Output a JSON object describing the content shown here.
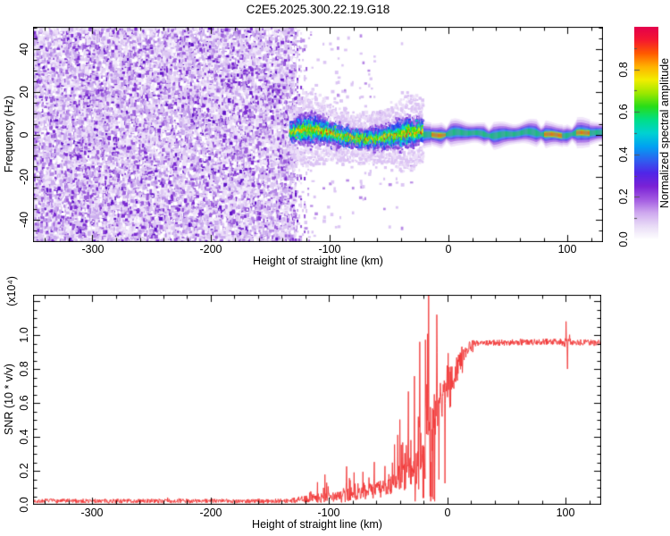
{
  "title": "C2E5.2025.300.22.19.G18",
  "labels": {
    "xlabel": "Height of straight line (km)",
    "top_ylabel": "Frequency (Hz)",
    "bottom_ylabel": "SNR (10 * v/v)",
    "bottom_ylabel_scale": "(x10⁴)",
    "colorbar_label": "Normalized spectral amplitude",
    "top_yticks": [
      "40",
      "20",
      "0",
      "-20",
      "-40"
    ],
    "xticks": [
      "-300",
      "-200",
      "-100",
      "0",
      "100"
    ],
    "bottom_yticks": [
      "1.0",
      "0.8",
      "0.6",
      "0.4",
      "0.2",
      "0.0"
    ],
    "cb_ticks": [
      "0.8",
      "0.6",
      "0.4",
      "0.2",
      "0.0"
    ]
  },
  "chart_data": [
    {
      "type": "heatmap",
      "subtype": "spectrogram",
      "title": "C2E5.2025.300.22.19.G18",
      "xlabel": "Height of straight line (km)",
      "ylabel": "Frequency (Hz)",
      "xlim": [
        -350,
        130
      ],
      "ylim": [
        -50.5,
        50.5
      ],
      "xticks": [
        -300,
        -200,
        -100,
        0,
        100
      ],
      "x_minor_step": 20,
      "x_major_step": 100,
      "yticks": [
        40,
        20,
        0,
        -20,
        -40
      ],
      "y_minor_step": 5,
      "y_major_step": 20,
      "grid": false,
      "colorbar": {
        "label": "Normalized spectral amplitude",
        "ticks": [
          0.0,
          0.2,
          0.4,
          0.6,
          0.8
        ],
        "minor_step": 0.1,
        "range": [
          0,
          1
        ],
        "stops": [
          "#ffffff",
          "#e9dcf7",
          "#cfa9ef",
          "#a35ae2",
          "#7a22d6",
          "#5026e8",
          "#2d62f0",
          "#00a2f2",
          "#00d2d2",
          "#00df88",
          "#28dd18",
          "#9ce800",
          "#f2ee00",
          "#ffb200",
          "#ff5a00",
          "#f51830",
          "#e4004e"
        ]
      },
      "regions": {
        "noise_field": {
          "x_range": [
            -350,
            -129.5
          ],
          "f_range": [
            -50.5,
            50.5
          ],
          "description": "dense purple speckle noise filling full frequency range"
        },
        "band_speckle": {
          "x_range": [
            -133,
            -21
          ],
          "center_hz": 0,
          "halfwidth_hz": [
            4,
            10
          ],
          "description": "wavy multicolor (blue-cyan-green-yellow-red) speckled signal band around 0 Hz"
        },
        "smooth_line": {
          "x_range": [
            -21,
            130
          ],
          "center_hz": 0.3,
          "halo_halfwidth_hz": 5.2,
          "core_halfwidth_hz": 1.35,
          "description": "narrow smooth signal line, green core with cyan-blue-purple halo"
        },
        "red_segments_km": [
          [
            -14,
            -2
          ],
          [
            81,
            96
          ],
          [
            108,
            119
          ]
        ],
        "pinch_km": [
          -2,
          34,
          78,
          104
        ]
      }
    },
    {
      "type": "line",
      "xlabel": "Height of straight line (km)",
      "ylabel": "SNR (10 * v/v)",
      "ylabel_scale_note": "(x10⁴)",
      "xlim": [
        -350,
        130
      ],
      "ylim": [
        0,
        1.237
      ],
      "xticks": [
        -300,
        -200,
        -100,
        0,
        100
      ],
      "x_minor_step": 20,
      "x_major_step": 100,
      "yticks": [
        1.0,
        0.8,
        0.6,
        0.4,
        0.2,
        0.0
      ],
      "y_minor_step": 0.05,
      "y_major_step": 0.2,
      "grid": false,
      "series": [
        {
          "name": "SNR",
          "color": "#f23838",
          "envelope": [
            {
              "km": [
                -350,
                -132
              ],
              "base": [
                0.022,
                0.022
              ],
              "noise": 0.013,
              "spike_rate": 0.02,
              "spike_max": 0.05
            },
            {
              "km": [
                -132,
                -116
              ],
              "base": [
                0.025,
                0.035
              ],
              "noise": 0.02,
              "spike_rate": 0.06,
              "spike_max": 0.09
            },
            {
              "km": [
                -116,
                -111
              ],
              "base": [
                0.05,
                0.05
              ],
              "noise": 0.03,
              "spike_rate": 0.2,
              "spike_max": 0.12
            },
            {
              "km": [
                -111,
                -90
              ],
              "base": [
                0.04,
                0.05
              ],
              "noise": 0.03,
              "spike_rate": 0.12,
              "spike_max": 0.22
            },
            {
              "km": [
                -90,
                -70
              ],
              "base": [
                0.05,
                0.07
              ],
              "noise": 0.04,
              "spike_rate": 0.15,
              "spike_max": 0.32
            },
            {
              "km": [
                -70,
                -52
              ],
              "base": [
                0.07,
                0.1
              ],
              "noise": 0.05,
              "spike_rate": 0.18,
              "spike_max": 0.46
            },
            {
              "km": [
                -52,
                -38
              ],
              "base": [
                0.1,
                0.15
              ],
              "noise": 0.06,
              "spike_rate": 0.2,
              "spike_max": 0.62
            },
            {
              "km": [
                -38,
                -28
              ],
              "base": [
                0.15,
                0.22
              ],
              "noise": 0.09,
              "spike_rate": 0.22,
              "spike_max": 0.88
            },
            {
              "km": [
                -28,
                -19
              ],
              "base": [
                0.22,
                0.34
              ],
              "noise": 0.14,
              "spike_rate": 0.26,
              "spike_max": 1.15
            },
            {
              "km": [
                -19,
                -11
              ],
              "base": [
                0.34,
                0.5
              ],
              "noise": 0.22,
              "spike_rate": 0.3,
              "spike_max": 1.237
            },
            {
              "km": [
                -11,
                -4
              ],
              "base": [
                0.55,
                0.62
              ],
              "noise": 0.18,
              "spike_rate": 0.18,
              "spike_max": 0.95
            },
            {
              "km": [
                -4,
                4
              ],
              "base": [
                0.62,
                0.74
              ],
              "noise": 0.15,
              "spike_rate": 0.12,
              "spike_max": 0.95
            },
            {
              "km": [
                4,
                13
              ],
              "base": [
                0.74,
                0.87
              ],
              "noise": 0.09,
              "spike_rate": 0.08,
              "spike_max": 0.97
            },
            {
              "km": [
                13,
                22
              ],
              "base": [
                0.87,
                0.945
              ],
              "noise": 0.045,
              "spike_rate": 0.02,
              "spike_max": 0.99
            },
            {
              "km": [
                22,
                97
              ],
              "base": [
                0.952,
                0.962
              ],
              "noise": 0.018,
              "spike_rate": 0.01,
              "spike_max": 1.0
            },
            {
              "km": [
                97,
                104
              ],
              "base": [
                0.955,
                0.955
              ],
              "noise": 0.035,
              "spike_rate": 0.06,
              "spike_max": 1.02
            },
            {
              "km": [
                104,
                130
              ],
              "base": [
                0.958,
                0.952
              ],
              "noise": 0.018,
              "spike_rate": 0.01,
              "spike_max": 0.99
            }
          ],
          "features": [
            {
              "km": -15.7,
              "value": 1.237
            },
            {
              "km": -14.5,
              "value": 0.05
            },
            {
              "km": -9.0,
              "value": 1.12
            },
            {
              "km": -20.0,
              "value": 0.04
            },
            {
              "km": 100.3,
              "value": 1.08
            },
            {
              "km": 101.6,
              "value": 0.8
            }
          ]
        }
      ]
    }
  ]
}
